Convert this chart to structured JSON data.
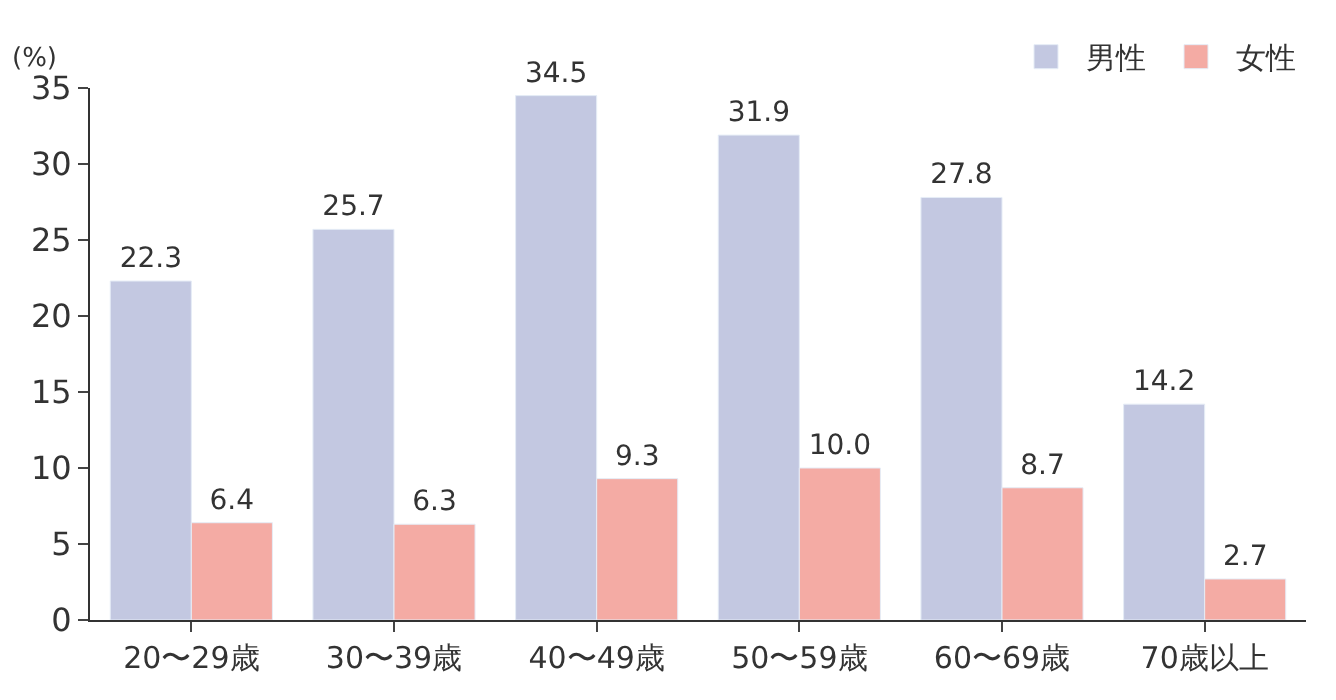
{
  "chart_data": {
    "type": "bar",
    "ylabel": "(%)",
    "categories": [
      "20〜29歳",
      "30〜39歳",
      "40〜49歳",
      "50〜59歳",
      "60〜69歳",
      "70歳以上"
    ],
    "series": [
      {
        "name": "男性",
        "color": "#c3c8e1",
        "values": [
          22.3,
          25.7,
          34.5,
          31.9,
          27.8,
          14.2
        ]
      },
      {
        "name": "女性",
        "color": "#f4aba4",
        "values": [
          6.4,
          6.3,
          9.3,
          10.0,
          8.7,
          2.7
        ]
      }
    ],
    "value_labels": [
      [
        "22.3",
        "25.7",
        "34.5",
        "31.9",
        "27.8",
        "14.2"
      ],
      [
        "6.4",
        "6.3",
        "9.3",
        "10.0",
        "8.7",
        "2.7"
      ]
    ],
    "ylim": [
      0,
      35
    ],
    "yticks": [
      0,
      5,
      10,
      15,
      20,
      25,
      30,
      35
    ],
    "legend": "top right"
  }
}
